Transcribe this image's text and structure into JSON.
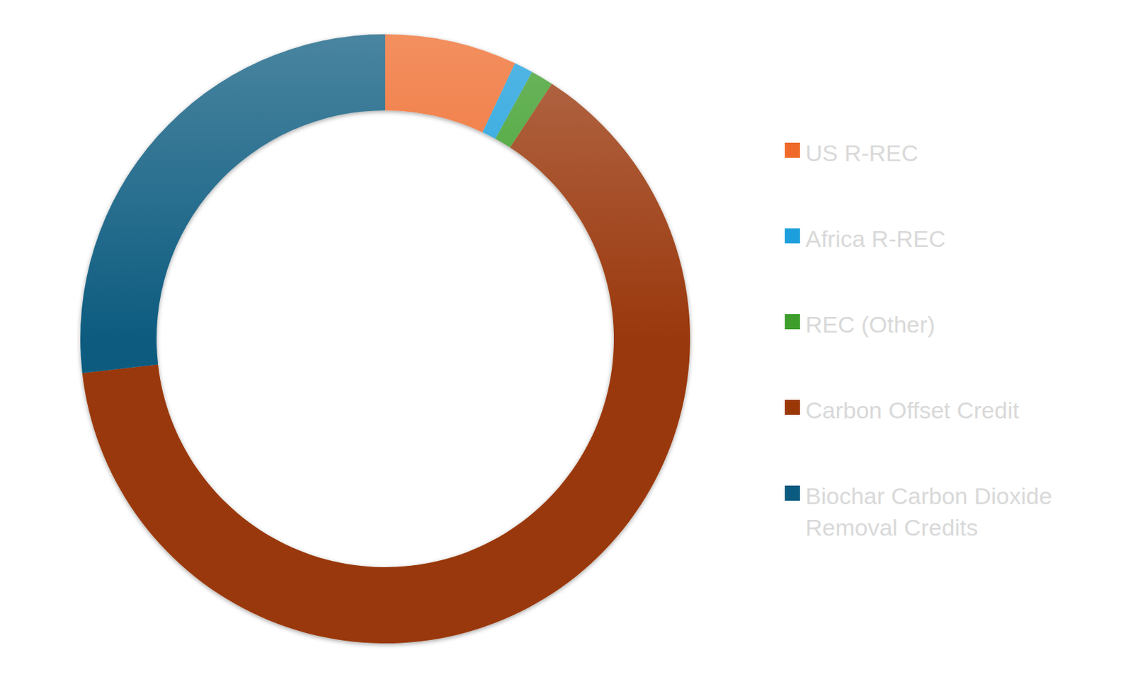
{
  "chart_data": {
    "type": "pie",
    "categories": [
      "US R-REC",
      "Africa R-REC",
      "REC (Other)",
      "Carbon Offset Credit",
      "Biochar Carbon Dioxide Removal Credits"
    ],
    "values": [
      7,
      1,
      1.2,
      64,
      26.8
    ],
    "colors": [
      "#ef6a2a",
      "#1c9fdc",
      "#3d9e2c",
      "#9a3707",
      "#0b5b80"
    ],
    "legend": "right"
  }
}
